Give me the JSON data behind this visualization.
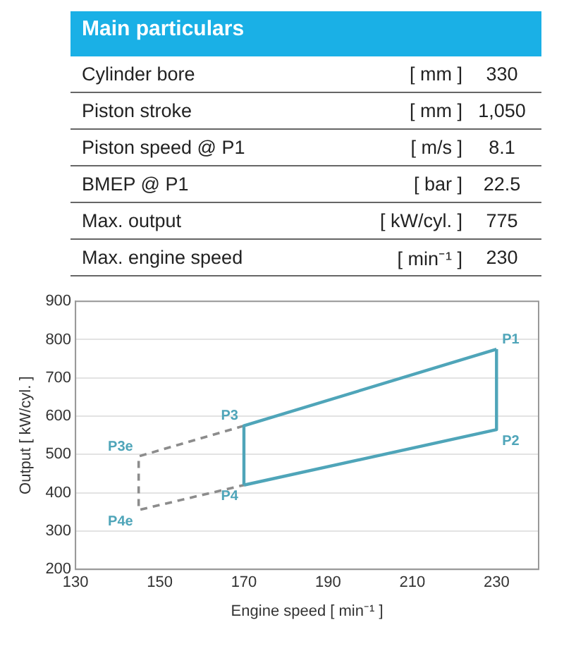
{
  "chart_data": [
    {
      "type": "other",
      "title": "Main particulars",
      "annotations": [
        "Cylinder bore",
        "[ mm ]",
        "330",
        "Piston stroke",
        "[ mm ]",
        "1,050",
        "Piston speed @ P1",
        "[ m/s ]",
        "8.1",
        "BMEP @ P1",
        "[ bar ]",
        "22.5",
        "Max. output",
        "[ kW/cyl. ]",
        "775",
        "Max. engine speed",
        "[ min⁻¹ ]",
        "230"
      ]
    },
    {
      "type": "line",
      "xlabel": "Engine speed [ min⁻¹ ]",
      "ylabel": "Output [ kW/cyl. ]",
      "xlim": [
        130,
        240
      ],
      "xticks": [
        130,
        150,
        170,
        190,
        210,
        230
      ],
      "ylim": [
        200,
        900
      ],
      "yticks": [
        200,
        300,
        400,
        500,
        600,
        700,
        800,
        900
      ],
      "grid": "y",
      "marker": "none",
      "legend": false,
      "series": [
        {
          "color": "#4fa5b9",
          "line_style": "solid",
          "x": [
            170,
            170,
            230
          ],
          "values": [
            420,
            575,
            775
          ]
        },
        {
          "color": "#4fa5b9",
          "line_style": "solid",
          "x": [
            170,
            230,
            230
          ],
          "values": [
            420,
            565,
            775
          ]
        },
        {
          "color": "#8c8c8c",
          "line_style": "dashed",
          "x": [
            170,
            145,
            145,
            170
          ],
          "values": [
            575,
            495,
            355,
            420
          ]
        }
      ],
      "annotations": [
        {
          "text": "P1",
          "x": 230,
          "y": 775
        },
        {
          "text": "P2",
          "x": 230,
          "y": 565
        },
        {
          "text": "P3",
          "x": 170,
          "y": 575
        },
        {
          "text": "P4",
          "x": 170,
          "y": 420
        },
        {
          "text": "P3e",
          "x": 145,
          "y": 495
        },
        {
          "text": "P4e",
          "x": 145,
          "y": 355
        }
      ]
    }
  ]
}
